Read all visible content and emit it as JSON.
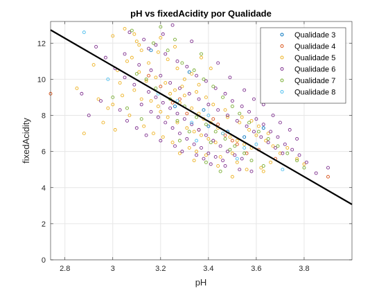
{
  "chart_data": {
    "type": "scatter",
    "title": "pH vs fixedAcidity por Qualidade",
    "xlabel": "pH",
    "ylabel": "fixedAcidity",
    "xlim": [
      2.74,
      4.0
    ],
    "ylim": [
      0,
      13.2
    ],
    "xticks": [
      2.8,
      3,
      3.2,
      3.4,
      3.6,
      3.8
    ],
    "yticks": [
      0,
      2,
      4,
      6,
      8,
      10,
      12
    ],
    "grid": true,
    "legend_position": "top-right",
    "series": [
      {
        "name": "Qualidade 3",
        "color": "#0072BD",
        "points": [
          [
            3.16,
            11.6
          ],
          [
            3.38,
            8.3
          ],
          [
            3.63,
            7.3
          ],
          [
            3.55,
            6.8
          ],
          [
            3.32,
            10.4
          ],
          [
            3.48,
            7.1
          ],
          [
            3.26,
            8.5
          ],
          [
            3.4,
            7.4
          ]
        ]
      },
      {
        "name": "Qualidade 4",
        "color": "#D95319",
        "points": [
          [
            2.74,
            9.2
          ],
          [
            3.9,
            4.6
          ],
          [
            3.52,
            6.4
          ],
          [
            3.42,
            7.8
          ],
          [
            3.28,
            8.9
          ],
          [
            3.61,
            6.1
          ],
          [
            3.36,
            7.2
          ],
          [
            3.2,
            9.6
          ],
          [
            3.47,
            6.9
          ],
          [
            3.56,
            5.9
          ],
          [
            3.31,
            8.1
          ],
          [
            3.15,
            10.2
          ],
          [
            3.68,
            5.6
          ],
          [
            3.44,
            7.5
          ],
          [
            3.25,
            8.7
          ],
          [
            3.5,
            6.6
          ]
        ]
      },
      {
        "name": "Qualidade 5",
        "color": "#EDB120",
        "points": [
          [
            3.0,
            12.4
          ],
          [
            3.05,
            12.8
          ],
          [
            3.1,
            12.1
          ],
          [
            3.12,
            11.6
          ],
          [
            3.08,
            11.2
          ],
          [
            3.15,
            10.9
          ],
          [
            3.02,
            10.5
          ],
          [
            3.18,
            10.1
          ],
          [
            3.22,
            9.8
          ],
          [
            3.26,
            9.4
          ],
          [
            3.3,
            9.1
          ],
          [
            3.28,
            8.7
          ],
          [
            3.33,
            8.4
          ],
          [
            3.36,
            8.1
          ],
          [
            3.38,
            7.8
          ],
          [
            3.41,
            7.6
          ],
          [
            3.44,
            7.3
          ],
          [
            3.46,
            7.0
          ],
          [
            3.49,
            6.8
          ],
          [
            3.52,
            6.6
          ],
          [
            3.55,
            6.4
          ],
          [
            3.58,
            6.2
          ],
          [
            3.2,
            8.2
          ],
          [
            3.23,
            7.9
          ],
          [
            3.27,
            7.6
          ],
          [
            3.31,
            7.3
          ],
          [
            3.34,
            7.1
          ],
          [
            3.37,
            6.9
          ],
          [
            3.4,
            6.7
          ],
          [
            3.43,
            6.5
          ],
          [
            3.16,
            8.8
          ],
          [
            3.19,
            8.5
          ],
          [
            3.24,
            9.2
          ],
          [
            3.29,
            9.6
          ],
          [
            3.14,
            9.9
          ],
          [
            3.11,
            10.4
          ],
          [
            3.06,
            11.0
          ],
          [
            3.04,
            9.1
          ],
          [
            2.98,
            8.4
          ],
          [
            2.96,
            7.6
          ],
          [
            3.01,
            7.2
          ],
          [
            3.07,
            8.0
          ],
          [
            3.13,
            7.4
          ],
          [
            3.17,
            7.0
          ],
          [
            3.21,
            6.8
          ],
          [
            3.25,
            6.5
          ],
          [
            3.32,
            6.2
          ],
          [
            3.35,
            6.0
          ],
          [
            3.39,
            5.8
          ],
          [
            3.45,
            5.7
          ],
          [
            3.5,
            5.9
          ],
          [
            3.53,
            7.6
          ],
          [
            3.57,
            7.2
          ],
          [
            3.6,
            6.9
          ],
          [
            3.64,
            6.6
          ],
          [
            3.67,
            6.3
          ],
          [
            3.7,
            5.9
          ],
          [
            3.66,
            5.4
          ],
          [
            3.62,
            5.1
          ],
          [
            3.47,
            8.3
          ],
          [
            3.42,
            8.6
          ],
          [
            3.39,
            9.0
          ],
          [
            3.35,
            9.3
          ],
          [
            3.3,
            10.0
          ],
          [
            3.27,
            10.6
          ],
          [
            3.23,
            11.1
          ],
          [
            3.19,
            11.5
          ],
          [
            3.09,
            12.5
          ],
          [
            2.85,
            9.5
          ],
          [
            2.92,
            10.8
          ],
          [
            3.03,
            9.8
          ],
          [
            3.09,
            9.4
          ],
          [
            3.12,
            8.9
          ],
          [
            3.33,
            10.3
          ],
          [
            3.36,
            9.7
          ],
          [
            3.48,
            7.9
          ],
          [
            3.54,
            7.9
          ],
          [
            3.58,
            7.7
          ],
          [
            3.61,
            7.4
          ],
          [
            3.65,
            7.0
          ],
          [
            3.73,
            6.2
          ],
          [
            3.77,
            5.6
          ],
          [
            3.8,
            5.3
          ],
          [
            2.88,
            7.0
          ],
          [
            2.94,
            8.9
          ],
          [
            3.0,
            8.6
          ],
          [
            3.28,
            5.9
          ],
          [
            3.34,
            5.5
          ],
          [
            3.44,
            5.2
          ],
          [
            3.52,
            5.4
          ],
          [
            3.56,
            5.0
          ],
          [
            3.63,
            4.9
          ],
          [
            3.5,
            4.6
          ],
          [
            3.11,
            11.9
          ],
          [
            3.2,
            12.3
          ],
          [
            3.26,
            11.8
          ],
          [
            3.37,
            11.2
          ],
          [
            3.41,
            10.6
          ]
        ]
      },
      {
        "name": "Qualidade 6",
        "color": "#7E2F8E",
        "points": [
          [
            3.25,
            13.0
          ],
          [
            3.07,
            12.6
          ],
          [
            3.13,
            12.2
          ],
          [
            3.18,
            11.9
          ],
          [
            3.22,
            11.4
          ],
          [
            3.27,
            11.0
          ],
          [
            3.31,
            10.7
          ],
          [
            3.35,
            10.2
          ],
          [
            3.39,
            9.9
          ],
          [
            3.43,
            9.5
          ],
          [
            3.47,
            9.2
          ],
          [
            3.5,
            8.8
          ],
          [
            3.54,
            8.5
          ],
          [
            3.57,
            8.2
          ],
          [
            3.6,
            7.8
          ],
          [
            3.63,
            7.5
          ],
          [
            3.66,
            7.1
          ],
          [
            3.69,
            6.8
          ],
          [
            3.72,
            6.4
          ],
          [
            3.75,
            6.1
          ],
          [
            3.78,
            5.8
          ],
          [
            3.81,
            5.4
          ],
          [
            3.85,
            4.8
          ],
          [
            3.9,
            5.1
          ],
          [
            3.15,
            9.3
          ],
          [
            3.18,
            9.0
          ],
          [
            3.21,
            8.7
          ],
          [
            3.24,
            8.4
          ],
          [
            3.27,
            8.1
          ],
          [
            3.3,
            7.8
          ],
          [
            3.33,
            7.5
          ],
          [
            3.36,
            7.2
          ],
          [
            3.39,
            6.9
          ],
          [
            3.42,
            6.6
          ],
          [
            3.45,
            6.3
          ],
          [
            3.48,
            6.0
          ],
          [
            3.51,
            5.8
          ],
          [
            3.54,
            5.6
          ],
          [
            3.12,
            8.6
          ],
          [
            3.16,
            8.2
          ],
          [
            3.19,
            7.9
          ],
          [
            3.22,
            7.6
          ],
          [
            3.25,
            7.3
          ],
          [
            3.28,
            7.0
          ],
          [
            3.31,
            6.7
          ],
          [
            3.34,
            6.4
          ],
          [
            3.37,
            6.2
          ],
          [
            3.4,
            5.9
          ],
          [
            3.43,
            5.7
          ],
          [
            3.46,
            5.5
          ],
          [
            3.09,
            9.7
          ],
          [
            3.05,
            10.1
          ],
          [
            3.01,
            10.6
          ],
          [
            2.97,
            11.2
          ],
          [
            2.93,
            11.8
          ],
          [
            3.11,
            10.8
          ],
          [
            3.16,
            10.5
          ],
          [
            3.2,
            10.2
          ],
          [
            3.24,
            9.8
          ],
          [
            3.28,
            9.5
          ],
          [
            3.32,
            9.2
          ],
          [
            3.36,
            8.9
          ],
          [
            3.4,
            8.6
          ],
          [
            3.44,
            8.3
          ],
          [
            3.48,
            8.0
          ],
          [
            3.52,
            7.7
          ],
          [
            3.56,
            7.4
          ],
          [
            3.59,
            7.1
          ],
          [
            3.62,
            6.8
          ],
          [
            3.65,
            6.5
          ],
          [
            3.68,
            6.2
          ],
          [
            3.71,
            5.9
          ],
          [
            2.87,
            9.2
          ],
          [
            2.9,
            8.0
          ],
          [
            2.95,
            8.8
          ],
          [
            3.03,
            8.3
          ],
          [
            3.06,
            7.7
          ],
          [
            3.1,
            7.3
          ],
          [
            3.14,
            6.9
          ],
          [
            3.2,
            6.6
          ],
          [
            3.26,
            6.3
          ],
          [
            3.29,
            6.0
          ],
          [
            3.35,
            5.8
          ],
          [
            3.38,
            5.6
          ],
          [
            3.41,
            5.3
          ],
          [
            3.47,
            5.2
          ],
          [
            3.53,
            5.0
          ],
          [
            3.58,
            4.9
          ],
          [
            3.33,
            12.1
          ],
          [
            3.21,
            12.5
          ],
          [
            3.15,
            11.7
          ],
          [
            3.05,
            11.4
          ],
          [
            3.44,
            10.9
          ],
          [
            3.49,
            10.1
          ],
          [
            3.55,
            9.4
          ],
          [
            3.59,
            8.9
          ],
          [
            3.63,
            8.6
          ],
          [
            3.67,
            8.0
          ],
          [
            3.7,
            7.6
          ],
          [
            3.74,
            7.2
          ],
          [
            3.77,
            6.7
          ]
        ]
      },
      {
        "name": "Qualidade 7",
        "color": "#77AC30",
        "points": [
          [
            3.08,
            12.7
          ],
          [
            3.2,
            12.9
          ],
          [
            3.17,
            12.0
          ],
          [
            3.23,
            11.6
          ],
          [
            3.29,
            10.9
          ],
          [
            3.34,
            10.5
          ],
          [
            3.38,
            10.0
          ],
          [
            3.42,
            9.6
          ],
          [
            3.46,
            9.0
          ],
          [
            3.5,
            8.5
          ],
          [
            3.53,
            8.1
          ],
          [
            3.57,
            7.6
          ],
          [
            3.61,
            7.1
          ],
          [
            3.65,
            6.7
          ],
          [
            3.69,
            6.3
          ],
          [
            3.73,
            5.9
          ],
          [
            3.77,
            5.5
          ],
          [
            3.8,
            5.1
          ],
          [
            3.24,
            8.9
          ],
          [
            3.3,
            8.5
          ],
          [
            3.35,
            7.9
          ],
          [
            3.39,
            7.5
          ],
          [
            3.43,
            7.1
          ],
          [
            3.47,
            6.7
          ],
          [
            3.51,
            6.3
          ],
          [
            3.55,
            5.9
          ],
          [
            3.18,
            9.5
          ],
          [
            3.14,
            10.0
          ],
          [
            3.1,
            10.3
          ],
          [
            3.27,
            7.7
          ],
          [
            3.32,
            7.1
          ],
          [
            3.41,
            6.5
          ],
          [
            3.49,
            6.1
          ],
          [
            3.58,
            5.5
          ],
          [
            3.63,
            5.2
          ],
          [
            3.39,
            5.4
          ],
          [
            3.45,
            4.9
          ],
          [
            3.28,
            6.6
          ],
          [
            3.12,
            7.8
          ],
          [
            3.06,
            8.4
          ],
          [
            3.0,
            9.0
          ],
          [
            3.37,
            11.4
          ],
          [
            3.26,
            12.2
          ]
        ]
      },
      {
        "name": "Qualidade 8",
        "color": "#4DBEEE",
        "points": [
          [
            2.88,
            12.6
          ],
          [
            2.98,
            10.0
          ],
          [
            3.33,
            7.6
          ],
          [
            3.46,
            7.0
          ],
          [
            3.52,
            5.6
          ],
          [
            3.71,
            5.0
          ],
          [
            3.19,
            9.2
          ],
          [
            3.4,
            8.0
          ],
          [
            3.6,
            6.4
          ],
          [
            3.27,
            8.8
          ],
          [
            3.55,
            6.2
          ],
          [
            3.35,
            6.6
          ]
        ]
      }
    ],
    "fit_line": {
      "color": "#000000",
      "points": [
        [
          2.74,
          12.73
        ],
        [
          4.0,
          3.07
        ]
      ]
    }
  }
}
